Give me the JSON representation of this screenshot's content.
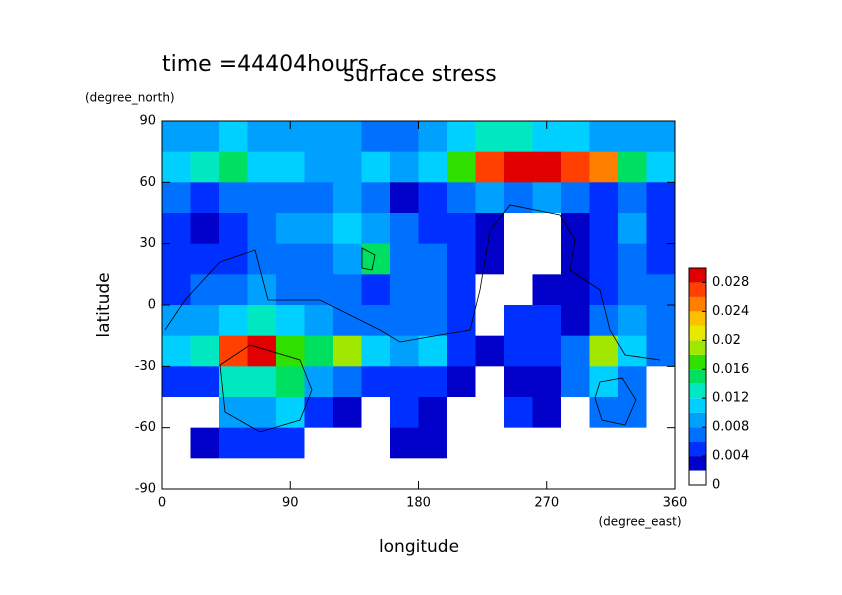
{
  "chart_data": {
    "type": "contour",
    "title": "surface stress",
    "subtitle": "time =44404hours",
    "x_label": "longitude",
    "x_unit": "(degree_east)",
    "y_label": "latitude",
    "y_unit": "(degree_north)",
    "xlim": [
      0,
      360
    ],
    "xticks": [
      0,
      90,
      180,
      270,
      360
    ],
    "ylim": [
      -90,
      90
    ],
    "yticks": [
      -90,
      -60,
      -30,
      0,
      30,
      60,
      90
    ],
    "x": [
      10,
      30,
      50,
      70,
      90,
      110,
      130,
      150,
      170,
      190,
      210,
      230,
      250,
      270,
      290,
      310,
      330,
      350
    ],
    "y": [
      82.5,
      67.5,
      52.5,
      37.5,
      22.5,
      7.5,
      -7.5,
      -22.5,
      -37.5,
      -52.5,
      -67.5,
      -82.5
    ],
    "z": [
      [
        0.008,
        0.008,
        0.01,
        0.008,
        0.008,
        0.008,
        0.008,
        0.006,
        0.006,
        0.008,
        0.01,
        0.012,
        0.012,
        0.01,
        0.01,
        0.008,
        0.008,
        0.008
      ],
      [
        0.01,
        0.012,
        0.014,
        0.01,
        0.01,
        0.008,
        0.008,
        0.01,
        0.008,
        0.01,
        0.016,
        0.026,
        0.029,
        0.029,
        0.026,
        0.024,
        0.014,
        0.01
      ],
      [
        0.006,
        0.004,
        0.006,
        0.006,
        0.006,
        0.006,
        0.008,
        0.006,
        0.002,
        0.004,
        0.006,
        0.008,
        0.006,
        0.008,
        0.006,
        0.004,
        0.006,
        0.004
      ],
      [
        0.004,
        0.002,
        0.004,
        0.006,
        0.008,
        0.008,
        0.01,
        0.008,
        0.006,
        0.004,
        0.004,
        0.002,
        0,
        0,
        0.002,
        0.004,
        0.008,
        0.004
      ],
      [
        0.004,
        0.004,
        0.004,
        0.006,
        0.006,
        0.006,
        0.008,
        0.014,
        0.006,
        0.006,
        0.004,
        0.002,
        0,
        0,
        0.002,
        0.004,
        0.006,
        0.004
      ],
      [
        0.004,
        0.006,
        0.006,
        0.008,
        0.006,
        0.006,
        0.006,
        0.004,
        0.006,
        0.006,
        0.004,
        0,
        0,
        0.002,
        0.002,
        0.004,
        0.006,
        0.006
      ],
      [
        0.008,
        0.008,
        0.01,
        0.012,
        0.01,
        0.008,
        0.006,
        0.006,
        0.006,
        0.006,
        0.004,
        0,
        0.004,
        0.004,
        0.002,
        0.006,
        0.008,
        0.006
      ],
      [
        0.01,
        0.012,
        0.026,
        0.029,
        0.016,
        0.014,
        0.018,
        0.01,
        0.008,
        0.01,
        0.004,
        0.002,
        0.004,
        0.004,
        0.006,
        0.018,
        0.01,
        0.006
      ],
      [
        0.004,
        0.004,
        0.012,
        0.012,
        0.014,
        0.008,
        0.006,
        0.004,
        0.004,
        0.004,
        0.002,
        0,
        0.002,
        0.002,
        0.006,
        0.01,
        0.006,
        0
      ],
      [
        0,
        0,
        0.008,
        0.008,
        0.01,
        0.004,
        0.002,
        0,
        0.004,
        0.002,
        0,
        0,
        0.004,
        0.002,
        0,
        0.006,
        0.006,
        0
      ],
      [
        0,
        0.002,
        0.004,
        0.004,
        0.004,
        0,
        0,
        0,
        0.002,
        0.002,
        0,
        0,
        0,
        0,
        0,
        0,
        0,
        0
      ],
      [
        0,
        0,
        0,
        0,
        0,
        0,
        0,
        0,
        0,
        0,
        0,
        0,
        0,
        0,
        0,
        0,
        0,
        0
      ]
    ],
    "levels": [
      0,
      0.002,
      0.004,
      0.006,
      0.008,
      0.01,
      0.012,
      0.014,
      0.016,
      0.018,
      0.02,
      0.022,
      0.024,
      0.026,
      0.028,
      0.03
    ],
    "colors": [
      "#ffffff",
      "#0000c8",
      "#0030ff",
      "#0070ff",
      "#00a0ff",
      "#00d0ff",
      "#00e8c0",
      "#00e060",
      "#30e000",
      "#a0e800",
      "#e8e800",
      "#ffc000",
      "#ff8000",
      "#ff4000",
      "#e00000"
    ],
    "cbar_ticks": [
      0,
      0.004,
      0.008,
      0.012,
      0.016,
      0.02,
      0.024,
      0.028
    ]
  }
}
